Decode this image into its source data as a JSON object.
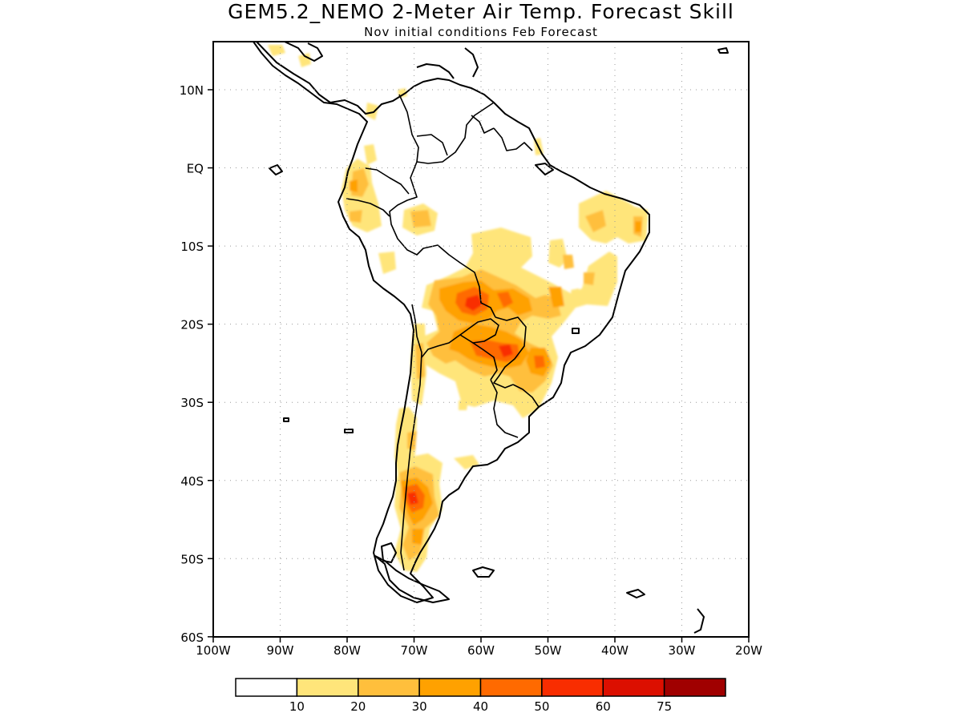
{
  "title": "GEM5.2_NEMO 2-Meter Air Temp. Forecast Skill",
  "subtitle": "Nov initial conditions  Feb Forecast",
  "lat_ticks": [
    "10N",
    "EQ",
    "10S",
    "20S",
    "30S",
    "40S",
    "50S",
    "60S"
  ],
  "lon_ticks": [
    "100W",
    "90W",
    "80W",
    "70W",
    "60W",
    "50W",
    "40W",
    "30W",
    "20W"
  ],
  "colorbar": {
    "labels": [
      "10",
      "20",
      "30",
      "40",
      "50",
      "60",
      "75"
    ],
    "colors": [
      "#ffffff",
      "#ffe57a",
      "#ffbf3c",
      "#ffa100",
      "#ff6a00",
      "#f92d00",
      "#dc0f00",
      "#a00000"
    ]
  }
}
